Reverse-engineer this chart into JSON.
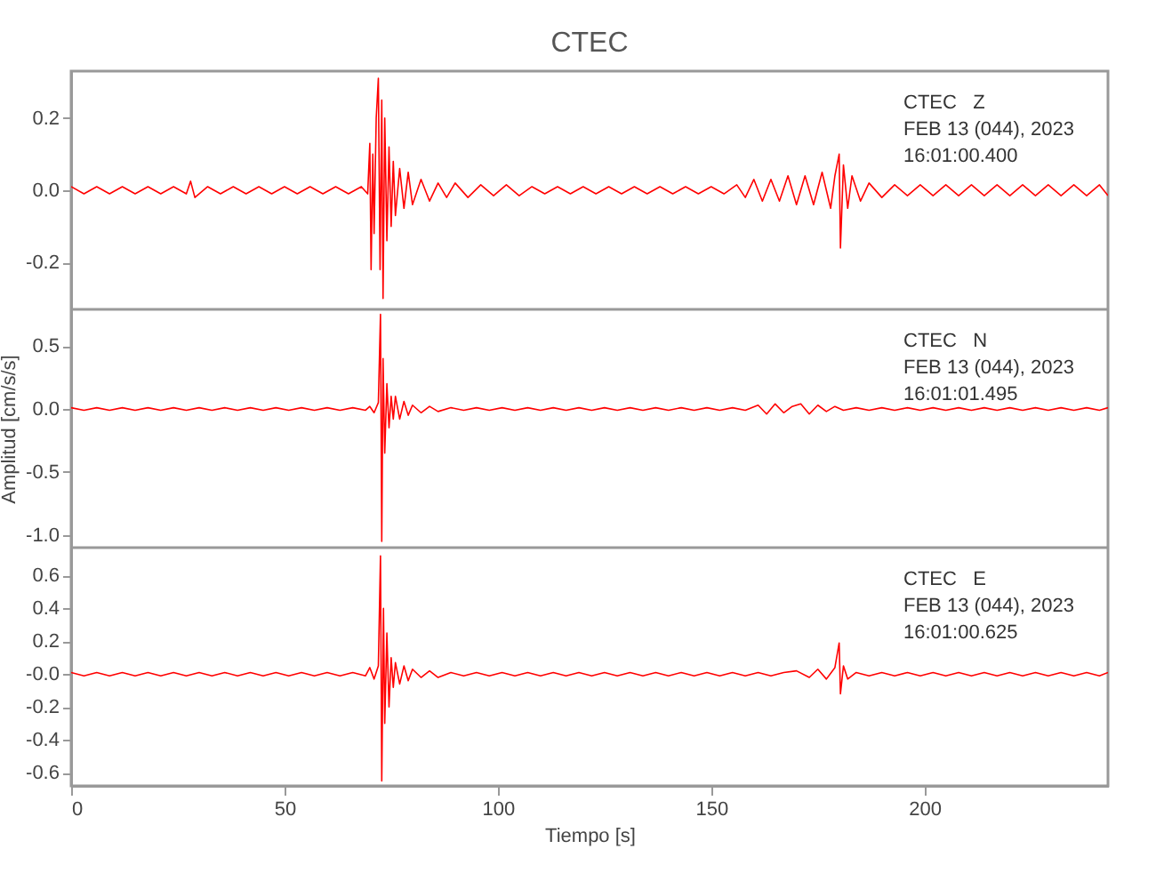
{
  "chart_data": [
    {
      "type": "line",
      "title": "CTEC",
      "annotations": [
        "CTEC   Z\nFEB 13 (044), 2023\n16:01:00.400"
      ],
      "xlim": [
        0,
        243
      ],
      "xticks": [
        0,
        50,
        100,
        150,
        200
      ],
      "ylim": [
        -0.33,
        0.33
      ],
      "yticks": [
        {
          "value": -0.2,
          "label": "-0.2"
        },
        {
          "value": 0,
          "label": "0.0"
        },
        {
          "value": 0.2,
          "label": "0.2"
        }
      ],
      "tick_labels": "y",
      "grid": false,
      "series": [
        {
          "color": "#ff0000",
          "x": [
            0,
            3,
            6,
            9,
            12,
            15,
            18,
            21,
            24,
            27,
            28,
            29,
            32,
            35,
            38,
            41,
            44,
            47,
            50,
            53,
            56,
            59,
            62,
            65,
            68,
            69.5,
            70,
            70.3,
            70.7,
            71,
            71.5,
            72,
            72.4,
            72.8,
            73.1,
            73.5,
            74,
            74.5,
            75,
            75.5,
            76,
            77,
            78,
            79,
            80,
            82,
            84,
            86,
            88,
            90,
            93,
            96,
            99,
            102,
            105,
            108,
            111,
            114,
            117,
            120,
            123,
            126,
            129,
            132,
            135,
            138,
            141,
            144,
            147,
            150,
            153,
            156,
            158,
            160,
            162,
            164,
            166,
            168,
            170,
            172,
            174,
            176,
            178,
            179,
            180,
            180.3,
            181,
            182,
            183,
            185,
            187,
            190,
            193,
            196,
            199,
            202,
            205,
            208,
            211,
            214,
            217,
            220,
            223,
            226,
            229,
            232,
            235,
            238,
            241,
            243
          ],
          "values": [
            0.01,
            -0.01,
            0.01,
            -0.01,
            0.01,
            -0.01,
            0.01,
            -0.01,
            0.01,
            -0.01,
            0.025,
            -0.02,
            0.01,
            -0.01,
            0.01,
            -0.01,
            0.01,
            -0.01,
            0.01,
            -0.01,
            0.01,
            -0.01,
            0.01,
            -0.01,
            0.01,
            -0.01,
            0.13,
            -0.22,
            0.1,
            -0.12,
            0.2,
            0.31,
            -0.22,
            0.25,
            -0.3,
            0.2,
            -0.14,
            0.12,
            -0.1,
            0.08,
            -0.07,
            0.06,
            -0.05,
            0.05,
            -0.04,
            0.03,
            -0.03,
            0.02,
            -0.02,
            0.02,
            -0.02,
            0.015,
            -0.015,
            0.015,
            -0.015,
            0.01,
            -0.01,
            0.01,
            -0.01,
            0.01,
            -0.01,
            0.01,
            -0.01,
            0.01,
            -0.01,
            0.01,
            -0.01,
            0.01,
            -0.01,
            0.01,
            -0.01,
            0.015,
            -0.02,
            0.03,
            -0.03,
            0.03,
            -0.03,
            0.04,
            -0.04,
            0.04,
            -0.04,
            0.05,
            -0.05,
            0.04,
            0.1,
            -0.16,
            0.07,
            -0.05,
            0.04,
            -0.03,
            0.02,
            -0.02,
            0.015,
            -0.015,
            0.015,
            -0.015,
            0.015,
            -0.015,
            0.015,
            -0.015,
            0.015,
            -0.015,
            0.015,
            -0.015,
            0.015,
            -0.015,
            0.015,
            -0.015,
            0.015,
            -0.015
          ]
        }
      ]
    },
    {
      "type": "line",
      "ylabel": "Amplitud [cm/s/s]",
      "annotations": [
        "CTEC   N\nFEB 13 (044), 2023\n16:01:01.495"
      ],
      "xlim": [
        0,
        243
      ],
      "xticks": [
        0,
        50,
        100,
        150,
        200
      ],
      "ylim": [
        -1.1,
        0.79
      ],
      "yticks": [
        {
          "value": -1,
          "label": "-1.0"
        },
        {
          "value": -0.5,
          "label": "-0.5"
        },
        {
          "value": 0,
          "label": "0.0"
        },
        {
          "value": 0.5,
          "label": "0.5"
        }
      ],
      "tick_labels": "y",
      "grid": false,
      "series": [
        {
          "color": "#ff0000",
          "x": [
            0,
            3,
            6,
            9,
            12,
            15,
            18,
            21,
            24,
            27,
            30,
            33,
            36,
            39,
            42,
            45,
            48,
            51,
            54,
            57,
            60,
            63,
            66,
            69,
            70,
            71,
            72,
            72.5,
            72.8,
            73.1,
            73.5,
            74,
            74.5,
            75,
            75.5,
            76,
            77,
            78,
            79,
            80,
            82,
            84,
            86,
            89,
            92,
            95,
            98,
            101,
            104,
            107,
            110,
            113,
            116,
            119,
            122,
            125,
            128,
            131,
            134,
            137,
            140,
            143,
            146,
            149,
            152,
            155,
            158,
            161,
            163,
            165,
            167,
            169,
            171,
            173,
            175,
            177,
            179,
            181,
            184,
            187,
            190,
            193,
            196,
            199,
            202,
            205,
            208,
            211,
            214,
            217,
            220,
            223,
            226,
            229,
            232,
            235,
            238,
            241,
            243
          ],
          "values": [
            0.01,
            -0.01,
            0.01,
            -0.01,
            0.01,
            -0.01,
            0.01,
            -0.01,
            0.01,
            -0.01,
            0.01,
            -0.01,
            0.01,
            -0.01,
            0.01,
            -0.01,
            0.01,
            -0.01,
            0.01,
            -0.01,
            0.01,
            -0.01,
            0.01,
            -0.01,
            0.02,
            -0.03,
            0.05,
            0.75,
            -1.05,
            0.4,
            -0.35,
            0.2,
            -0.15,
            0.1,
            -0.08,
            0.1,
            -0.08,
            0.06,
            -0.05,
            0.03,
            -0.03,
            0.02,
            -0.02,
            0.01,
            -0.01,
            0.01,
            -0.01,
            0.01,
            -0.01,
            0.01,
            -0.01,
            0.01,
            -0.01,
            0.01,
            -0.01,
            0.01,
            -0.01,
            0.01,
            -0.01,
            0.01,
            -0.01,
            0.01,
            -0.01,
            0.01,
            -0.01,
            0.01,
            -0.01,
            0.03,
            -0.04,
            0.04,
            -0.03,
            0.02,
            0.04,
            -0.04,
            0.03,
            -0.02,
            0.02,
            -0.01,
            0.01,
            -0.01,
            0.01,
            -0.01,
            0.01,
            -0.01,
            0.01,
            -0.01,
            0.01,
            -0.01,
            0.01,
            -0.01,
            0.01,
            -0.01,
            0.01,
            -0.01,
            0.01,
            -0.01,
            0.01,
            -0.01,
            0.01
          ]
        }
      ]
    },
    {
      "type": "line",
      "xlabel": "Tiempo [s]",
      "annotations": [
        "CTEC   E\nFEB 13 (044), 2023\n16:01:00.625"
      ],
      "xlim": [
        0,
        243
      ],
      "xticks": [
        0,
        50,
        100,
        150,
        200
      ],
      "ylim": [
        -0.68,
        0.77
      ],
      "yticks": [
        {
          "value": -0.6,
          "label": "-0.6"
        },
        {
          "value": -0.4,
          "label": "-0.4"
        },
        {
          "value": -0.2,
          "label": "-0.2"
        },
        {
          "value": 0,
          "label": "-0.0"
        },
        {
          "value": 0.2,
          "label": "0.2"
        },
        {
          "value": 0.4,
          "label": "0.4"
        },
        {
          "value": 0.6,
          "label": "0.6"
        }
      ],
      "grid": false,
      "series": [
        {
          "color": "#ff0000",
          "x": [
            0,
            3,
            6,
            9,
            12,
            15,
            18,
            21,
            24,
            27,
            30,
            33,
            36,
            39,
            42,
            45,
            48,
            51,
            54,
            57,
            60,
            63,
            66,
            69,
            70,
            71,
            72,
            72.5,
            72.8,
            73.2,
            73.5,
            74,
            74.5,
            75,
            75.5,
            76,
            77,
            78,
            79,
            80,
            82,
            84,
            86,
            89,
            92,
            95,
            98,
            101,
            104,
            107,
            110,
            113,
            116,
            119,
            122,
            125,
            128,
            131,
            134,
            137,
            140,
            143,
            146,
            149,
            152,
            155,
            158,
            161,
            164,
            167,
            170,
            173,
            175,
            177,
            179,
            180,
            180.3,
            181,
            182,
            184,
            187,
            190,
            193,
            196,
            199,
            202,
            205,
            208,
            211,
            214,
            217,
            220,
            223,
            226,
            229,
            232,
            235,
            238,
            241,
            243
          ],
          "values": [
            0.01,
            -0.01,
            0.01,
            -0.01,
            0.01,
            -0.01,
            0.01,
            -0.01,
            0.01,
            -0.01,
            0.01,
            -0.01,
            0.01,
            -0.01,
            0.01,
            -0.01,
            0.01,
            -0.01,
            0.01,
            -0.01,
            0.01,
            -0.01,
            0.01,
            -0.01,
            0.04,
            -0.03,
            0.05,
            0.72,
            -0.65,
            0.4,
            -0.3,
            0.25,
            -0.2,
            0.1,
            -0.08,
            0.07,
            -0.06,
            0.05,
            -0.04,
            0.03,
            -0.02,
            0.02,
            -0.02,
            0.01,
            -0.01,
            0.01,
            -0.01,
            0.01,
            -0.01,
            0.01,
            -0.01,
            0.01,
            -0.01,
            0.01,
            -0.01,
            0.01,
            -0.01,
            0.01,
            -0.01,
            0.01,
            -0.01,
            0.01,
            -0.01,
            0.01,
            -0.01,
            0.01,
            -0.01,
            0.01,
            -0.01,
            0.01,
            0.02,
            -0.02,
            0.03,
            -0.03,
            0.04,
            0.19,
            -0.12,
            0.05,
            -0.03,
            0.01,
            -0.01,
            0.01,
            -0.01,
            0.01,
            -0.01,
            0.01,
            -0.01,
            0.01,
            -0.01,
            0.01,
            -0.01,
            0.01,
            -0.01,
            0.01,
            -0.01,
            0.01,
            -0.01,
            0.01,
            -0.01,
            0.01
          ]
        }
      ]
    }
  ]
}
